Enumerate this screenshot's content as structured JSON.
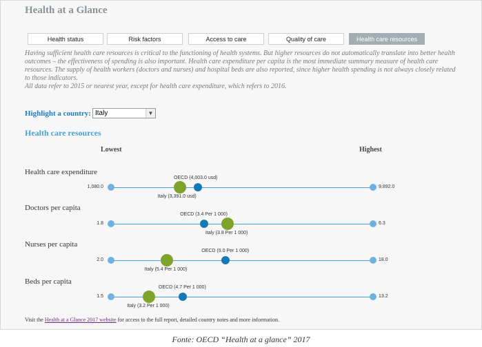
{
  "app": {
    "title": "Health at a Glance"
  },
  "tabs": [
    {
      "label": "Health status",
      "active": false
    },
    {
      "label": "Risk factors",
      "active": false
    },
    {
      "label": "Access to care",
      "active": false
    },
    {
      "label": "Quality of care",
      "active": false
    },
    {
      "label": "Health care resources",
      "active": true
    }
  ],
  "intro": {
    "paragraph": "Having sufficient health care resources is critical to the functioning of health systems. But higher resources do not automatically translate into better health outcomes – the effectiveness of spending is also important. Health care expenditure per capita is the most immediate summary measure of health care resources. The supply of health workers (doctors and nurses) and hospital beds are also reported, since higher health spending is not always closely related to those indicators.",
    "note": "All data refer to 2015 or nearest year, except for health care expenditure, which refers to 2016."
  },
  "highlight": {
    "label": "Highlight a country:",
    "selected": "Italy"
  },
  "section": {
    "title": "Health care resources",
    "lowest": "Lowest",
    "highest": "Highest"
  },
  "indicators": [
    {
      "name": "Health care expenditure",
      "min_label": "1,080.0",
      "max_label": "9,892.0",
      "min": 1080,
      "max": 9892,
      "oecd": 4003,
      "country": 3391,
      "oecd_label": "OECD (4,003.0 usd)",
      "country_label": "Italy (3,391.0 usd)"
    },
    {
      "name": "Doctors per capita",
      "min_label": "1.8",
      "max_label": "6.3",
      "min": 1.8,
      "max": 6.3,
      "oecd": 3.4,
      "country": 3.8,
      "oecd_label": "OECD (3.4 Per 1 000)",
      "country_label": "Italy (3.8 Per 1 000)"
    },
    {
      "name": "Nurses per capita",
      "min_label": "2.0",
      "max_label": "18.0",
      "min": 2.0,
      "max": 18.0,
      "oecd": 9.0,
      "country": 5.4,
      "oecd_label": "OECD (9.0 Per 1 000)",
      "country_label": "Italy (5.4 Per 1 000)"
    },
    {
      "name": "Beds per capita",
      "min_label": "1.5",
      "max_label": "13.2",
      "min": 1.5,
      "max": 13.2,
      "oecd": 4.7,
      "country": 3.2,
      "oecd_label": "OECD (4.7 Per 1 000)",
      "country_label": "Italy (3.2 Per 1 000)"
    }
  ],
  "footer": {
    "prefix": "Visit the ",
    "link": "Health at a Glance 2017 website",
    "suffix": " for access to the full report, detailed country notes and more information."
  },
  "caption": "Fonte: OECD “Health at a glance” 2017",
  "colors": {
    "track": "#4aa0d4",
    "oecd_dot": "#1579b8",
    "country_dot": "#7ea32b",
    "end_dot": "#6fb2e0",
    "active_tab": "#a3aeb4"
  }
}
